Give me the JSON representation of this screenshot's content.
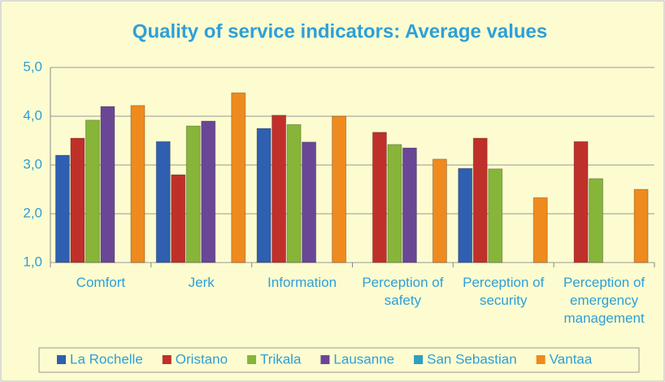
{
  "chart_data": {
    "type": "bar",
    "title": "Quality of service indicators: Average values",
    "categories": [
      "Comfort",
      "Jerk",
      "Information",
      "Perception of safety",
      "Perception of security",
      "Perception of emergency management"
    ],
    "series": [
      {
        "name": "La Rochelle",
        "color": "#2f5fb0",
        "values": [
          3.2,
          3.48,
          3.75,
          null,
          2.93,
          null
        ]
      },
      {
        "name": "Oristano",
        "color": "#c0302a",
        "values": [
          3.55,
          2.8,
          4.02,
          3.67,
          3.55,
          3.48
        ]
      },
      {
        "name": "Trikala",
        "color": "#86b53a",
        "values": [
          3.92,
          3.8,
          3.83,
          3.42,
          2.92,
          2.72
        ]
      },
      {
        "name": "Lausanne",
        "color": "#6a4796",
        "values": [
          4.2,
          3.9,
          3.47,
          3.35,
          null,
          null
        ]
      },
      {
        "name": "San Sebastian",
        "color": "#2d9fc0",
        "values": [
          null,
          null,
          null,
          null,
          null,
          null
        ]
      },
      {
        "name": "Vantaa",
        "color": "#ef8a1e",
        "values": [
          4.22,
          4.48,
          4.0,
          3.12,
          2.33,
          2.5
        ]
      }
    ],
    "ylim": [
      1,
      5
    ],
    "yticks": [
      {
        "value": 1,
        "label": "1,0"
      },
      {
        "value": 2,
        "label": "2,0"
      },
      {
        "value": 3,
        "label": "3,0"
      },
      {
        "value": 4,
        "label": "4,0"
      },
      {
        "value": 5,
        "label": "5,0"
      }
    ],
    "grid": true,
    "legend": "bottom"
  }
}
